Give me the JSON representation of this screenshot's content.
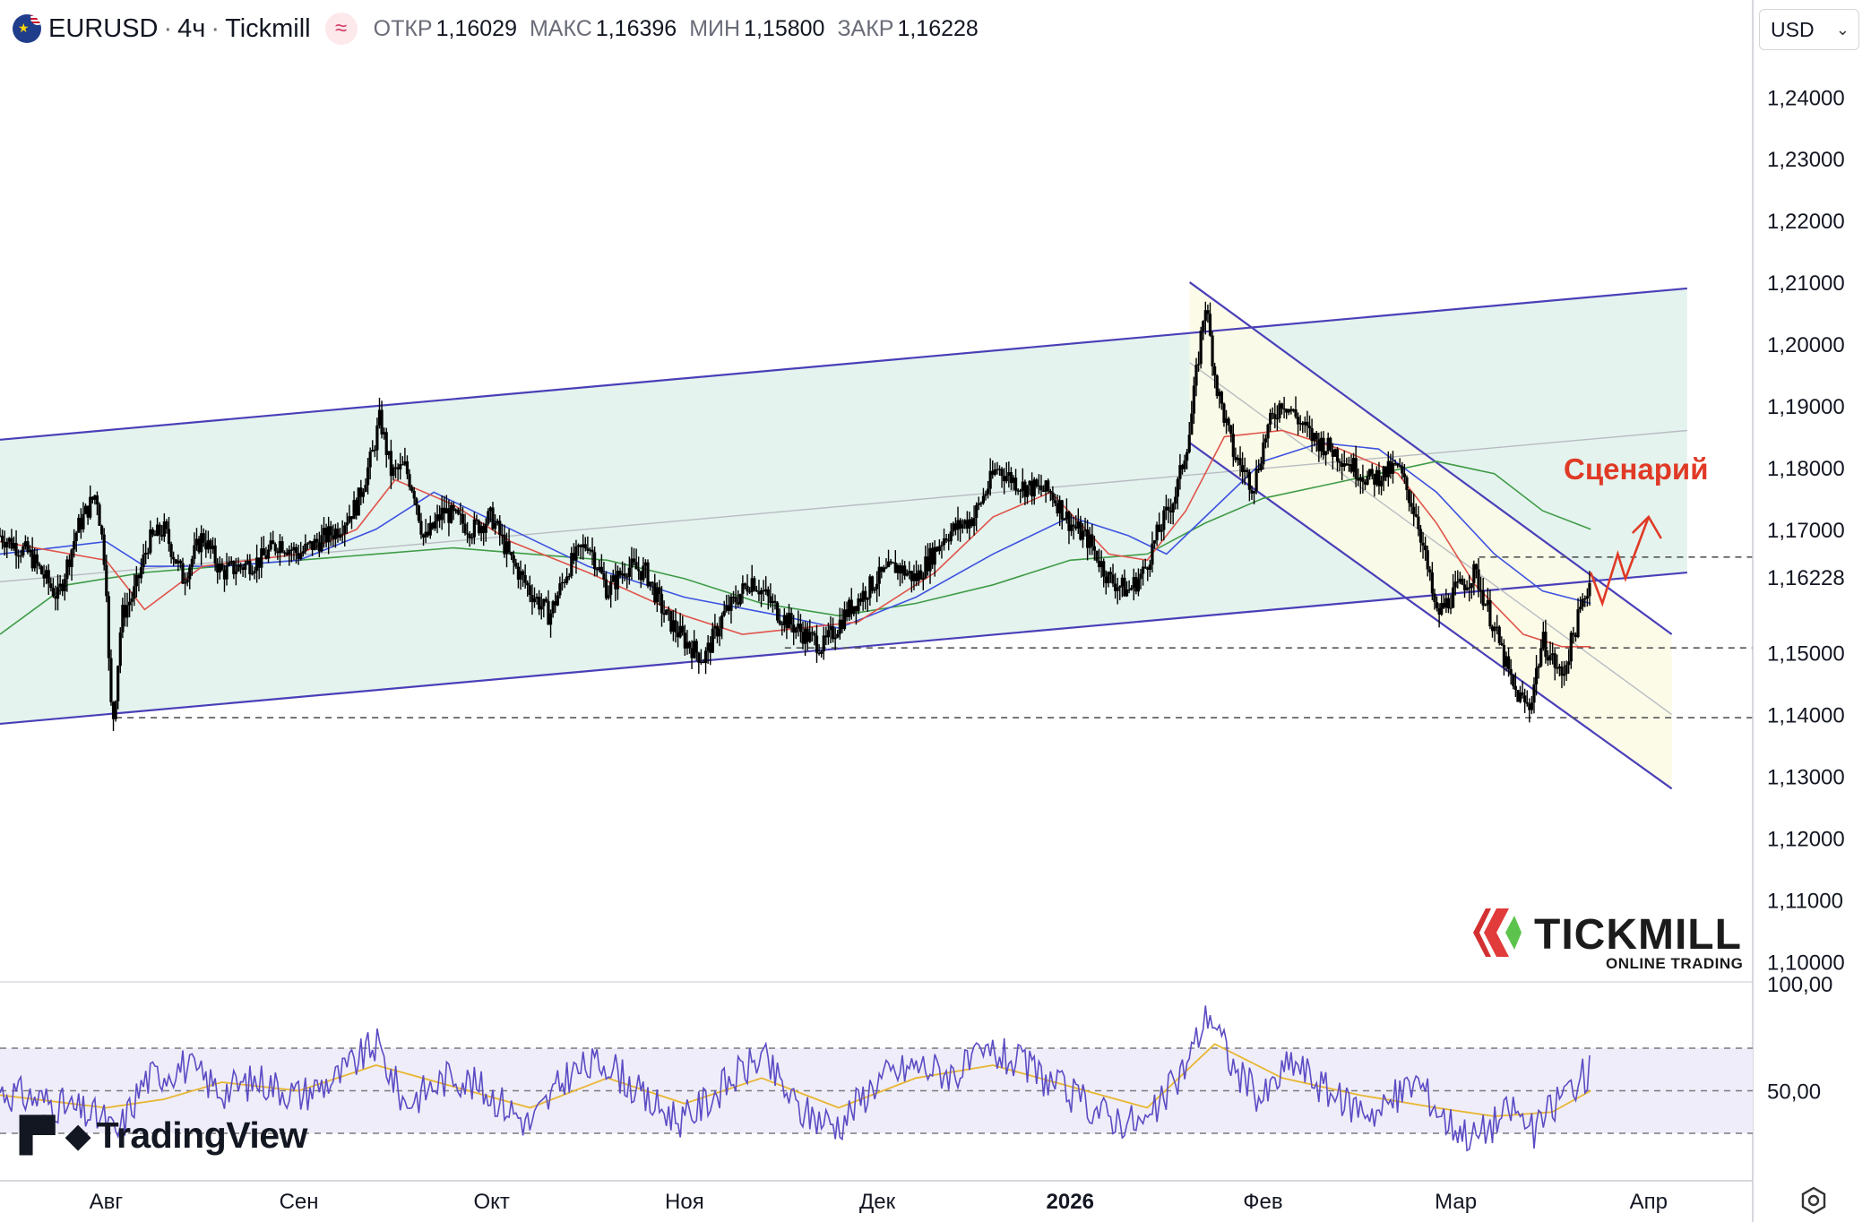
{
  "header": {
    "symbol": "EURUSD",
    "timeframe": "4ч",
    "broker": "Tickmill",
    "separator": "·",
    "indicator_icon": "≈",
    "open_label": "ОТКР",
    "open_value": "1,16029",
    "high_label": "МАКС",
    "high_value": "1,16396",
    "low_label": "МИН",
    "low_value": "1,15800",
    "close_label": "ЗАКР",
    "close_value": "1,16228"
  },
  "currency_select": {
    "value": "USD"
  },
  "annotation": {
    "text": "Сценарий"
  },
  "tradingview_logo": {
    "text": "TradingView"
  },
  "tickmill_logo": {
    "name": "TICKMILL",
    "tagline": "ONLINE TRADING"
  },
  "colors": {
    "candles": "#000000",
    "ma_fast": "#e0544a",
    "ma_mid": "#3d52e0",
    "ma_slow": "#3f9b47",
    "channel_lines": "#4a3fb8",
    "channel_fill": "#e4f3ee",
    "descending_fill": "#fbfbe6",
    "rsi_line": "#5b4cc4",
    "rsi_signal": "#e8b632",
    "rsi_band": "#efedf9",
    "scenario_arrow": "#e03a26",
    "last_price_label": "#131722"
  },
  "chart_data": [
    {
      "type": "candlestick",
      "symbol": "EURUSD",
      "interval": "4h",
      "price_axis": {
        "ticks": [
          "1,24000",
          "1,23000",
          "1,22000",
          "1,21000",
          "1,20000",
          "1,19000",
          "1,18000",
          "1,17000",
          "1,15000",
          "1,14000",
          "1,13000",
          "1,12000",
          "1,11000",
          "1,10000"
        ],
        "tick_values": [
          1.24,
          1.23,
          1.22,
          1.21,
          1.2,
          1.19,
          1.18,
          1.17,
          1.15,
          1.14,
          1.13,
          1.12,
          1.11,
          1.1
        ],
        "range": [
          1.097,
          1.247
        ],
        "last_price": "1,16228",
        "last_price_value": 1.16228
      },
      "time_axis": {
        "labels": [
          "Авг",
          "Сен",
          "Окт",
          "Ноя",
          "Дек",
          "2026",
          "Фев",
          "Мар",
          "Апр"
        ],
        "label_months": [
          0,
          1,
          2,
          3,
          4,
          5,
          6,
          7,
          8
        ],
        "bold_label": "2026",
        "range_months": [
          -0.55,
          8.54
        ]
      },
      "close_path": [
        [
          -0.55,
          1.169
        ],
        [
          -0.4,
          1.166
        ],
        [
          -0.25,
          1.159
        ],
        [
          -0.15,
          1.17
        ],
        [
          -0.05,
          1.176
        ],
        [
          0.0,
          1.163
        ],
        [
          0.02,
          1.142
        ],
        [
          0.04,
          1.1395
        ],
        [
          0.08,
          1.156
        ],
        [
          0.15,
          1.16
        ],
        [
          0.22,
          1.168
        ],
        [
          0.3,
          1.17
        ],
        [
          0.4,
          1.162
        ],
        [
          0.5,
          1.169
        ],
        [
          0.6,
          1.163
        ],
        [
          0.7,
          1.164
        ],
        [
          0.8,
          1.165
        ],
        [
          0.9,
          1.168
        ],
        [
          1.0,
          1.166
        ],
        [
          1.1,
          1.168
        ],
        [
          1.2,
          1.17
        ],
        [
          1.3,
          1.174
        ],
        [
          1.38,
          1.182
        ],
        [
          1.42,
          1.188
        ],
        [
          1.48,
          1.179
        ],
        [
          1.55,
          1.18
        ],
        [
          1.6,
          1.176
        ],
        [
          1.65,
          1.168
        ],
        [
          1.75,
          1.173
        ],
        [
          1.9,
          1.17
        ],
        [
          2.0,
          1.172
        ],
        [
          2.1,
          1.165
        ],
        [
          2.2,
          1.16
        ],
        [
          2.3,
          1.156
        ],
        [
          2.4,
          1.164
        ],
        [
          2.5,
          1.168
        ],
        [
          2.6,
          1.16
        ],
        [
          2.7,
          1.164
        ],
        [
          2.8,
          1.163
        ],
        [
          2.9,
          1.156
        ],
        [
          3.0,
          1.152
        ],
        [
          3.1,
          1.149
        ],
        [
          3.2,
          1.156
        ],
        [
          3.35,
          1.162
        ],
        [
          3.5,
          1.156
        ],
        [
          3.62,
          1.153
        ],
        [
          3.72,
          1.151
        ],
        [
          3.85,
          1.157
        ],
        [
          4.0,
          1.162
        ],
        [
          4.1,
          1.164
        ],
        [
          4.2,
          1.162
        ],
        [
          4.35,
          1.169
        ],
        [
          4.5,
          1.172
        ],
        [
          4.62,
          1.18
        ],
        [
          4.75,
          1.177
        ],
        [
          4.9,
          1.176
        ],
        [
          5.0,
          1.171
        ],
        [
          5.1,
          1.168
        ],
        [
          5.2,
          1.162
        ],
        [
          5.3,
          1.16
        ],
        [
          5.38,
          1.163
        ],
        [
          5.45,
          1.169
        ],
        [
          5.55,
          1.176
        ],
        [
          5.62,
          1.186
        ],
        [
          5.7,
          1.207
        ],
        [
          5.76,
          1.193
        ],
        [
          5.85,
          1.182
        ],
        [
          5.95,
          1.177
        ],
        [
          6.02,
          1.186
        ],
        [
          6.1,
          1.191
        ],
        [
          6.25,
          1.185
        ],
        [
          6.4,
          1.182
        ],
        [
          6.55,
          1.178
        ],
        [
          6.7,
          1.18
        ],
        [
          6.8,
          1.172
        ],
        [
          6.9,
          1.156
        ],
        [
          7.0,
          1.16
        ],
        [
          7.1,
          1.163
        ],
        [
          7.2,
          1.154
        ],
        [
          7.3,
          1.144
        ],
        [
          7.38,
          1.141
        ],
        [
          7.45,
          1.152
        ],
        [
          7.55,
          1.146
        ],
        [
          7.62,
          1.154
        ],
        [
          7.7,
          1.1623
        ]
      ],
      "moving_averages": {
        "fast": [
          [
            -0.55,
            1.168
          ],
          [
            0.0,
            1.165
          ],
          [
            0.2,
            1.157
          ],
          [
            0.5,
            1.164
          ],
          [
            1.0,
            1.166
          ],
          [
            1.3,
            1.17
          ],
          [
            1.5,
            1.178
          ],
          [
            1.8,
            1.174
          ],
          [
            2.1,
            1.168
          ],
          [
            2.5,
            1.163
          ],
          [
            3.0,
            1.156
          ],
          [
            3.3,
            1.153
          ],
          [
            3.6,
            1.154
          ],
          [
            3.9,
            1.155
          ],
          [
            4.3,
            1.163
          ],
          [
            4.6,
            1.172
          ],
          [
            4.9,
            1.176
          ],
          [
            5.2,
            1.166
          ],
          [
            5.4,
            1.165
          ],
          [
            5.6,
            1.173
          ],
          [
            5.8,
            1.185
          ],
          [
            6.1,
            1.186
          ],
          [
            6.4,
            1.183
          ],
          [
            6.7,
            1.179
          ],
          [
            6.9,
            1.171
          ],
          [
            7.1,
            1.161
          ],
          [
            7.35,
            1.153
          ],
          [
            7.55,
            1.151
          ],
          [
            7.7,
            1.151
          ]
        ],
        "mid": [
          [
            -0.55,
            1.166
          ],
          [
            0.0,
            1.168
          ],
          [
            0.2,
            1.164
          ],
          [
            0.6,
            1.164
          ],
          [
            1.0,
            1.165
          ],
          [
            1.4,
            1.17
          ],
          [
            1.7,
            1.176
          ],
          [
            2.1,
            1.17
          ],
          [
            2.5,
            1.164
          ],
          [
            3.0,
            1.159
          ],
          [
            3.5,
            1.156
          ],
          [
            3.8,
            1.154
          ],
          [
            4.2,
            1.159
          ],
          [
            4.6,
            1.166
          ],
          [
            5.0,
            1.172
          ],
          [
            5.3,
            1.169
          ],
          [
            5.5,
            1.166
          ],
          [
            5.7,
            1.172
          ],
          [
            6.0,
            1.181
          ],
          [
            6.3,
            1.184
          ],
          [
            6.6,
            1.183
          ],
          [
            6.9,
            1.176
          ],
          [
            7.2,
            1.166
          ],
          [
            7.45,
            1.16
          ],
          [
            7.7,
            1.158
          ]
        ],
        "slow": [
          [
            -0.55,
            1.153
          ],
          [
            -0.2,
            1.161
          ],
          [
            0.2,
            1.163
          ],
          [
            0.6,
            1.164
          ],
          [
            1.0,
            1.165
          ],
          [
            1.4,
            1.166
          ],
          [
            1.8,
            1.167
          ],
          [
            2.2,
            1.166
          ],
          [
            2.6,
            1.165
          ],
          [
            3.0,
            1.162
          ],
          [
            3.4,
            1.158
          ],
          [
            3.8,
            1.156
          ],
          [
            4.2,
            1.158
          ],
          [
            4.6,
            1.161
          ],
          [
            5.0,
            1.165
          ],
          [
            5.4,
            1.166
          ],
          [
            5.7,
            1.171
          ],
          [
            6.0,
            1.175
          ],
          [
            6.3,
            1.177
          ],
          [
            6.6,
            1.179
          ],
          [
            6.9,
            1.181
          ],
          [
            7.2,
            1.179
          ],
          [
            7.45,
            1.173
          ],
          [
            7.7,
            1.17
          ]
        ]
      },
      "ascending_channel": {
        "upper": [
          [
            -0.55,
            1.1845
          ],
          [
            8.2,
            1.209
          ]
        ],
        "middle": [
          [
            -0.55,
            1.1615
          ],
          [
            8.2,
            1.186
          ]
        ],
        "lower": [
          [
            -0.55,
            1.1385
          ],
          [
            8.2,
            1.163
          ]
        ]
      },
      "descending_channel": {
        "upper": [
          [
            5.62,
            1.21
          ],
          [
            8.12,
            1.153
          ]
        ],
        "middle": [
          [
            5.62,
            1.197
          ],
          [
            8.12,
            1.14
          ]
        ],
        "lower": [
          [
            5.62,
            1.184
          ],
          [
            8.12,
            1.128
          ]
        ]
      },
      "horizontal_levels": [
        {
          "value": 1.1395,
          "from_month": 0.05
        },
        {
          "value": 1.1508,
          "from_month": 3.52
        },
        {
          "value": 1.1655,
          "from_month": 7.12
        }
      ],
      "scenario_path": [
        [
          7.7,
          1.163
        ],
        [
          7.76,
          1.158
        ],
        [
          7.84,
          1.166
        ],
        [
          7.88,
          1.162
        ],
        [
          8.0,
          1.172
        ]
      ]
    },
    {
      "type": "line",
      "name": "RSI",
      "axis": {
        "ticks": [
          "100,00",
          "50,00"
        ],
        "tick_values": [
          100,
          50
        ],
        "range": [
          0,
          100
        ]
      },
      "bands": [
        70,
        50,
        30
      ],
      "path": [
        [
          -0.55,
          50
        ],
        [
          -0.3,
          45
        ],
        [
          0.0,
          36
        ],
        [
          0.05,
          28
        ],
        [
          0.2,
          55
        ],
        [
          0.4,
          62
        ],
        [
          0.6,
          50
        ],
        [
          0.8,
          55
        ],
        [
          1.0,
          48
        ],
        [
          1.2,
          56
        ],
        [
          1.4,
          72
        ],
        [
          1.55,
          44
        ],
        [
          1.8,
          58
        ],
        [
          2.0,
          48
        ],
        [
          2.2,
          34
        ],
        [
          2.4,
          58
        ],
        [
          2.6,
          64
        ],
        [
          2.8,
          45
        ],
        [
          3.0,
          36
        ],
        [
          3.2,
          52
        ],
        [
          3.4,
          66
        ],
        [
          3.6,
          40
        ],
        [
          3.8,
          34
        ],
        [
          4.0,
          55
        ],
        [
          4.2,
          62
        ],
        [
          4.4,
          58
        ],
        [
          4.6,
          68
        ],
        [
          4.8,
          60
        ],
        [
          5.0,
          48
        ],
        [
          5.2,
          38
        ],
        [
          5.4,
          34
        ],
        [
          5.6,
          62
        ],
        [
          5.72,
          88
        ],
        [
          5.85,
          60
        ],
        [
          6.0,
          46
        ],
        [
          6.15,
          64
        ],
        [
          6.4,
          45
        ],
        [
          6.6,
          40
        ],
        [
          6.8,
          55
        ],
        [
          6.95,
          36
        ],
        [
          7.1,
          28
        ],
        [
          7.3,
          42
        ],
        [
          7.4,
          30
        ],
        [
          7.55,
          48
        ],
        [
          7.7,
          60
        ]
      ],
      "signal": [
        [
          -0.55,
          48
        ],
        [
          0.0,
          42
        ],
        [
          0.3,
          46
        ],
        [
          0.6,
          54
        ],
        [
          1.0,
          50
        ],
        [
          1.4,
          62
        ],
        [
          1.8,
          52
        ],
        [
          2.2,
          42
        ],
        [
          2.6,
          56
        ],
        [
          3.0,
          44
        ],
        [
          3.4,
          56
        ],
        [
          3.8,
          42
        ],
        [
          4.2,
          56
        ],
        [
          4.6,
          62
        ],
        [
          5.0,
          52
        ],
        [
          5.4,
          42
        ],
        [
          5.75,
          72
        ],
        [
          6.1,
          56
        ],
        [
          6.5,
          48
        ],
        [
          6.9,
          42
        ],
        [
          7.2,
          38
        ],
        [
          7.5,
          40
        ],
        [
          7.7,
          50
        ]
      ]
    }
  ]
}
